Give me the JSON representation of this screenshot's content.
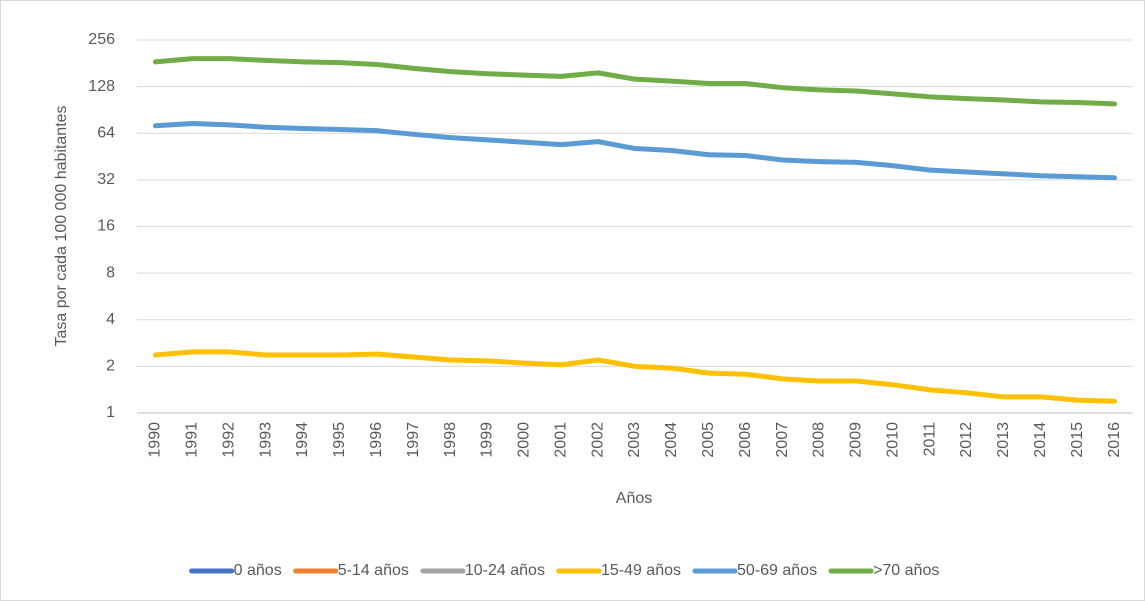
{
  "chart_data": {
    "type": "line",
    "x_label": "Años",
    "y_label": "Tasa por cada 100 000 habitantes",
    "categories": [
      "1990",
      "1991",
      "1992",
      "1993",
      "1994",
      "1995",
      "1996",
      "1997",
      "1998",
      "1999",
      "2000",
      "2001",
      "2002",
      "2003",
      "2004",
      "2005",
      "2006",
      "2007",
      "2008",
      "2009",
      "2010",
      "2011",
      "2012",
      "2013",
      "2014",
      "2015",
      "2016"
    ],
    "yscale": "log",
    "log_base": 2,
    "ylim": [
      1,
      256
    ],
    "yticks": [
      1,
      2,
      4,
      8,
      16,
      32,
      64,
      128,
      256
    ],
    "grid": true,
    "legend": "bottom",
    "series": [
      {
        "name": "0 años",
        "color": "#4472c4",
        "values": [
          null,
          null,
          null,
          null,
          null,
          null,
          null,
          null,
          null,
          null,
          null,
          null,
          null,
          null,
          null,
          null,
          null,
          null,
          null,
          null,
          null,
          null,
          null,
          null,
          null,
          null,
          null
        ]
      },
      {
        "name": "5-14 años",
        "color": "#ed7d31",
        "values": [
          null,
          null,
          null,
          null,
          null,
          null,
          null,
          null,
          null,
          null,
          null,
          null,
          null,
          null,
          null,
          null,
          null,
          null,
          null,
          null,
          null,
          null,
          null,
          null,
          null,
          null,
          null
        ]
      },
      {
        "name": "10-24 años",
        "color": "#a5a5a5",
        "values": [
          null,
          null,
          null,
          null,
          null,
          null,
          null,
          null,
          null,
          null,
          null,
          null,
          null,
          null,
          null,
          null,
          null,
          null,
          null,
          null,
          null,
          null,
          null,
          null,
          null,
          null,
          null
        ]
      },
      {
        "name": "15-49 años",
        "color": "#ffc000",
        "values": [
          2.37,
          2.48,
          2.48,
          2.37,
          2.37,
          2.37,
          2.4,
          2.3,
          2.2,
          2.17,
          2.1,
          2.05,
          2.2,
          2.0,
          1.95,
          1.81,
          1.78,
          1.66,
          1.61,
          1.61,
          1.52,
          1.41,
          1.35,
          1.27,
          1.27,
          1.21,
          1.19
        ]
      },
      {
        "name": "50-69 años",
        "color": "#5b9bd5",
        "values": [
          71.5,
          74,
          72.5,
          70,
          68.7,
          67.7,
          66.5,
          63,
          60,
          58,
          56,
          54,
          56.5,
          51,
          49.5,
          46.5,
          46,
          43,
          42,
          41.5,
          39.5,
          37,
          36,
          35,
          34,
          33.5,
          33
        ]
      },
      {
        "name": ">70 años",
        "color": "#70ad47",
        "values": [
          185,
          194,
          194,
          189,
          185,
          183,
          178,
          168,
          160,
          155,
          152,
          149,
          157,
          143,
          139,
          134,
          134,
          126,
          122,
          120,
          115,
          110,
          107,
          105,
          102,
          101,
          99
        ]
      }
    ]
  }
}
